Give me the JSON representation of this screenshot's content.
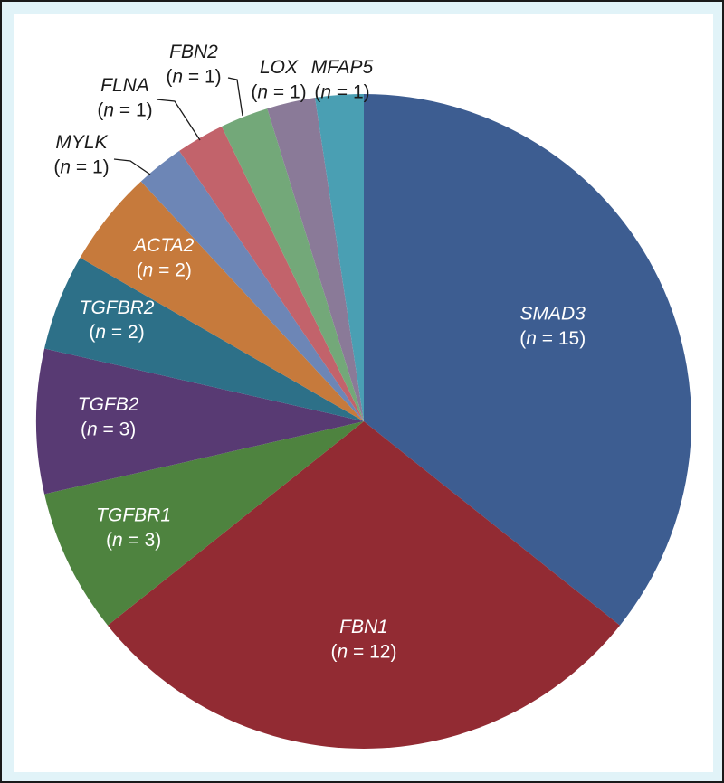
{
  "chart_data": {
    "type": "pie",
    "title": "",
    "start_angle_deg": 0,
    "direction": "clockwise",
    "slices": [
      {
        "label": "SMAD3",
        "count_text": "15",
        "value": 15,
        "color": "#3d5d91",
        "label_color": "#ffffff",
        "label_inside": true
      },
      {
        "label": "FBN1",
        "count_text": "12",
        "value": 12,
        "color": "#922b33",
        "label_color": "#ffffff",
        "label_inside": true
      },
      {
        "label": "TGFBR1",
        "count_text": "3",
        "value": 3,
        "color": "#4e833f",
        "label_color": "#ffffff",
        "label_inside": true
      },
      {
        "label": "TGFB2",
        "count_text": "3",
        "value": 3,
        "color": "#583a73",
        "label_color": "#ffffff",
        "label_inside": true
      },
      {
        "label": "TGFBR2",
        "count_text": "2",
        "value": 2,
        "color": "#2d7088",
        "label_color": "#ffffff",
        "label_inside": true
      },
      {
        "label": "ACTA2",
        "count_text": "2",
        "value": 2,
        "color": "#c67a3c",
        "label_color": "#ffffff",
        "label_inside": true
      },
      {
        "label": "MYLK",
        "count_text": "1",
        "value": 1,
        "color": "#6d86b6",
        "label_color": "#1a1a1a",
        "label_inside": false
      },
      {
        "label": "FLNA",
        "count_text": "1",
        "value": 1,
        "color": "#c2636b",
        "label_color": "#1a1a1a",
        "label_inside": false
      },
      {
        "label": "FBN2",
        "count_text": "1",
        "value": 1,
        "color": "#73a879",
        "label_color": "#1a1a1a",
        "label_inside": false
      },
      {
        "label": "LOX",
        "count_text": "1",
        "value": 1,
        "color": "#8a7a98",
        "label_color": "#1a1a1a",
        "label_inside": false
      },
      {
        "label": "MFAP5",
        "count_text": "1",
        "value": 1,
        "color": "#4a9fb3",
        "label_color": "#1a1a1a",
        "label_inside": false
      }
    ],
    "count_prefix": "n",
    "count_operator": " = "
  },
  "colors": {
    "frame_background": "#e1f3f8",
    "frame_border": "#1a1a1a",
    "plot_background": "#ffffff"
  }
}
